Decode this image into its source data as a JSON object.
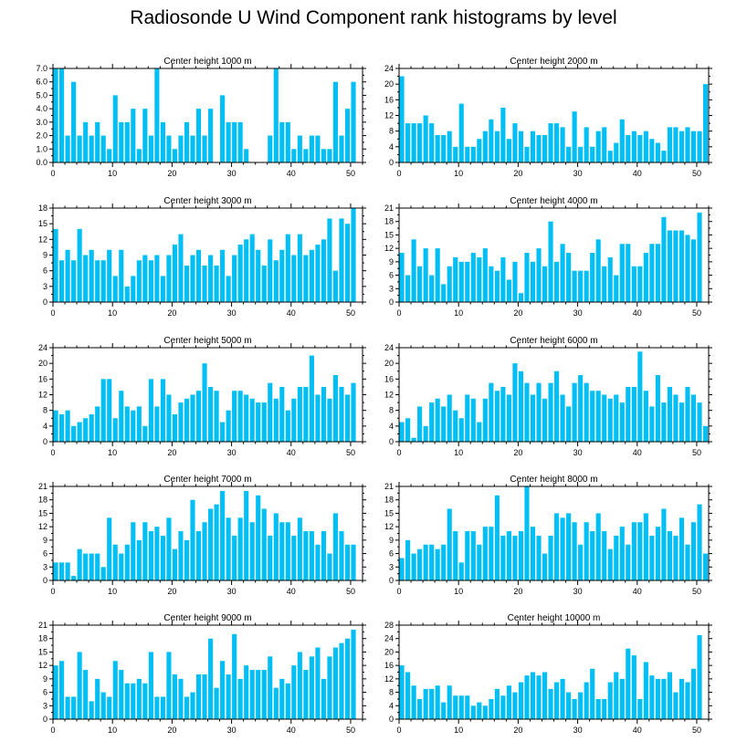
{
  "figure": {
    "title": "Radiosonde U Wind Component rank histograms by level",
    "bar_color": "#00BFF5"
  },
  "chart_data": [
    {
      "type": "bar",
      "title": "Center height 1000 m",
      "ylim": [
        0,
        7
      ],
      "yticks": [
        "0.0",
        "1.0",
        "2.0",
        "3.0",
        "4.0",
        "5.0",
        "6.0",
        "7.0"
      ],
      "xlim": [
        0,
        52
      ],
      "xticks": [
        "0",
        "10",
        "20",
        "30",
        "40",
        "50"
      ],
      "values": [
        7,
        7,
        2,
        6,
        2,
        3,
        2,
        3,
        2,
        1,
        5,
        3,
        3,
        4,
        1,
        4,
        2,
        7,
        3,
        2,
        1,
        2,
        3,
        2,
        4,
        2,
        4,
        0,
        5,
        3,
        3,
        3,
        1,
        0,
        0,
        0,
        2,
        7,
        3,
        3,
        1,
        2,
        1,
        2,
        2,
        1,
        1,
        6,
        2,
        4,
        6,
        0
      ]
    },
    {
      "type": "bar",
      "title": "Center height 2000 m",
      "ylim": [
        0,
        24
      ],
      "yticks": [
        "0",
        "4",
        "8",
        "12",
        "16",
        "20",
        "24"
      ],
      "xlim": [
        0,
        52
      ],
      "xticks": [
        "0",
        "10",
        "20",
        "30",
        "40",
        "50"
      ],
      "values": [
        22,
        10,
        10,
        10,
        12,
        10,
        7,
        7,
        8,
        4,
        15,
        4,
        4,
        6,
        8,
        11,
        8,
        14,
        6,
        10,
        8,
        4,
        8,
        7,
        7,
        10,
        10,
        9,
        4,
        13,
        4,
        9,
        4,
        8,
        9,
        3,
        5,
        11,
        7,
        8,
        7,
        8,
        6,
        5,
        3,
        9,
        9,
        8,
        9,
        8,
        8,
        20
      ]
    },
    {
      "type": "bar",
      "title": "Center height 3000 m",
      "ylim": [
        0,
        18
      ],
      "yticks": [
        "0",
        "3",
        "6",
        "9",
        "12",
        "15",
        "18"
      ],
      "xlim": [
        0,
        52
      ],
      "xticks": [
        "0",
        "10",
        "20",
        "30",
        "40",
        "50"
      ],
      "values": [
        14,
        8,
        10,
        8,
        14,
        9,
        10,
        8,
        8,
        10,
        5,
        10,
        3,
        5,
        8,
        9,
        8,
        9,
        5,
        9,
        11,
        13,
        7,
        9,
        10,
        7,
        9,
        7,
        10,
        5,
        9,
        11,
        12,
        13,
        10,
        7,
        12,
        8,
        10,
        13,
        9,
        13,
        9,
        10,
        11,
        12,
        16,
        6,
        16,
        15,
        18,
        0
      ]
    },
    {
      "type": "bar",
      "title": "Center height 4000 m",
      "ylim": [
        0,
        21
      ],
      "yticks": [
        "0",
        "3",
        "6",
        "9",
        "12",
        "15",
        "18",
        "21"
      ],
      "xlim": [
        0,
        52
      ],
      "xticks": [
        "0",
        "10",
        "20",
        "30",
        "40",
        "50"
      ],
      "values": [
        11,
        6,
        14,
        8,
        12,
        6,
        12,
        4,
        8,
        10,
        9,
        9,
        11,
        10,
        12,
        8,
        7,
        10,
        5,
        9,
        2,
        11,
        9,
        12,
        8,
        18,
        9,
        13,
        11,
        7,
        7,
        7,
        11,
        14,
        8,
        10,
        6,
        13,
        13,
        8,
        8,
        11,
        13,
        13,
        19,
        16,
        16,
        16,
        15,
        14,
        20,
        0
      ]
    },
    {
      "type": "bar",
      "title": "Center height 5000 m",
      "ylim": [
        0,
        24
      ],
      "yticks": [
        "0",
        "4",
        "8",
        "12",
        "16",
        "20",
        "24"
      ],
      "xlim": [
        0,
        52
      ],
      "xticks": [
        "0",
        "10",
        "20",
        "30",
        "40",
        "50"
      ],
      "values": [
        8,
        7,
        8,
        4,
        5,
        6,
        7,
        9,
        16,
        16,
        6,
        13,
        9,
        8,
        9,
        4,
        16,
        9,
        16,
        12,
        7,
        10,
        11,
        12,
        13,
        20,
        14,
        13,
        5,
        8,
        13,
        13,
        12,
        11,
        10,
        10,
        15,
        11,
        14,
        8,
        11,
        14,
        14,
        22,
        12,
        14,
        11,
        17,
        14,
        12,
        15,
        0
      ]
    },
    {
      "type": "bar",
      "title": "Center height 6000 m",
      "ylim": [
        0,
        24
      ],
      "yticks": [
        "0",
        "4",
        "8",
        "12",
        "16",
        "20",
        "24"
      ],
      "xlim": [
        0,
        52
      ],
      "xticks": [
        "0",
        "10",
        "20",
        "30",
        "40",
        "50"
      ],
      "values": [
        5,
        6,
        1,
        9,
        4,
        10,
        11,
        9,
        12,
        8,
        6,
        12,
        11,
        5,
        11,
        15,
        13,
        14,
        12,
        20,
        18,
        15,
        12,
        15,
        11,
        15,
        18,
        12,
        9,
        15,
        17,
        15,
        13,
        13,
        12,
        11,
        12,
        10,
        14,
        14,
        23,
        13,
        9,
        17,
        10,
        14,
        12,
        10,
        14,
        12,
        10,
        4
      ]
    },
    {
      "type": "bar",
      "title": "Center height 7000 m",
      "ylim": [
        0,
        21
      ],
      "yticks": [
        "0",
        "3",
        "6",
        "9",
        "12",
        "15",
        "18",
        "21"
      ],
      "xlim": [
        0,
        52
      ],
      "xticks": [
        "0",
        "10",
        "20",
        "30",
        "40",
        "50"
      ],
      "values": [
        4,
        4,
        4,
        1,
        7,
        6,
        6,
        6,
        3,
        14,
        8,
        6,
        8,
        13,
        9,
        13,
        11,
        12,
        10,
        14,
        7,
        11,
        9,
        18,
        11,
        13,
        16,
        17,
        20,
        14,
        10,
        14,
        20,
        13,
        19,
        16,
        10,
        15,
        13,
        13,
        10,
        14,
        11,
        11,
        8,
        11,
        6,
        15,
        11,
        8,
        8,
        0
      ]
    },
    {
      "type": "bar",
      "title": "Center height 8000 m",
      "ylim": [
        0,
        21
      ],
      "yticks": [
        "0",
        "3",
        "6",
        "9",
        "12",
        "15",
        "18",
        "21"
      ],
      "xlim": [
        0,
        52
      ],
      "xticks": [
        "0",
        "10",
        "20",
        "30",
        "40",
        "50"
      ],
      "values": [
        5,
        9,
        6,
        7,
        8,
        8,
        7,
        8,
        16,
        11,
        4,
        11,
        11,
        8,
        12,
        12,
        19,
        10,
        11,
        10,
        11,
        21,
        12,
        10,
        6,
        10,
        15,
        14,
        15,
        13,
        8,
        13,
        11,
        15,
        11,
        7,
        10,
        12,
        8,
        13,
        13,
        15,
        10,
        12,
        16,
        11,
        10,
        14,
        8,
        13,
        17,
        6
      ]
    },
    {
      "type": "bar",
      "title": "Center height 9000 m",
      "ylim": [
        0,
        21
      ],
      "yticks": [
        "0",
        "3",
        "6",
        "9",
        "12",
        "15",
        "18",
        "21"
      ],
      "xlim": [
        0,
        52
      ],
      "xticks": [
        "0",
        "10",
        "20",
        "30",
        "40",
        "50"
      ],
      "values": [
        12,
        13,
        5,
        5,
        15,
        11,
        4,
        9,
        6,
        5,
        13,
        11,
        8,
        8,
        9,
        8,
        15,
        5,
        5,
        15,
        10,
        9,
        5,
        6,
        10,
        10,
        18,
        7,
        13,
        10,
        19,
        9,
        12,
        11,
        11,
        11,
        14,
        7,
        9,
        8,
        12,
        15,
        11,
        14,
        16,
        9,
        14,
        16,
        17,
        18,
        20,
        0
      ]
    },
    {
      "type": "bar",
      "title": "Center height 10000 m",
      "ylim": [
        0,
        28
      ],
      "yticks": [
        "0",
        "4",
        "8",
        "12",
        "16",
        "20",
        "24",
        "28"
      ],
      "xlim": [
        0,
        52
      ],
      "xticks": [
        "0",
        "10",
        "20",
        "30",
        "40",
        "50"
      ],
      "values": [
        16,
        14,
        10,
        6,
        9,
        9,
        10,
        5,
        10,
        7,
        7,
        7,
        4,
        5,
        4,
        6,
        9,
        7,
        10,
        8,
        11,
        13,
        14,
        13,
        14,
        9,
        11,
        12,
        8,
        6,
        8,
        11,
        15,
        6,
        6,
        11,
        14,
        12,
        21,
        19,
        6,
        17,
        13,
        12,
        12,
        14,
        8,
        12,
        11,
        15,
        25,
        0
      ]
    }
  ]
}
